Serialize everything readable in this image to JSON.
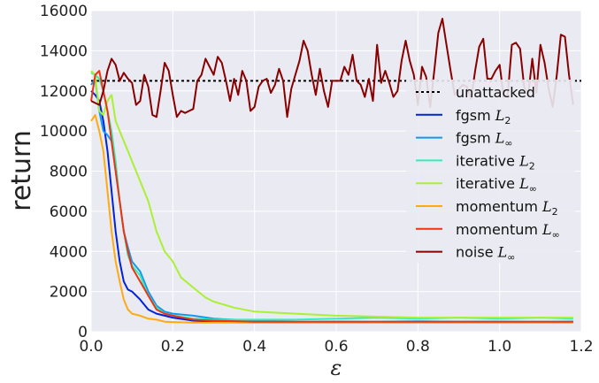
{
  "chart_data": {
    "type": "line",
    "xlabel": "ε",
    "ylabel": "return",
    "xlim": [
      0,
      1.2
    ],
    "ylim": [
      0,
      16000
    ],
    "x_ticks": [
      0.0,
      0.2,
      0.4,
      0.6,
      0.8,
      1.0,
      1.2
    ],
    "x_tick_labels": [
      "0.0",
      "0.2",
      "0.4",
      "0.6",
      "0.8",
      "1.0",
      "1.2"
    ],
    "y_ticks": [
      0,
      2000,
      4000,
      6000,
      8000,
      10000,
      12000,
      14000,
      16000
    ],
    "y_tick_labels": [
      "0",
      "2000",
      "4000",
      "6000",
      "8000",
      "10000",
      "12000",
      "14000",
      "16000"
    ],
    "grid": true,
    "legend_position": "right",
    "reference_line": {
      "name": "unattacked",
      "y": 12500,
      "color": "#000000"
    },
    "series": [
      {
        "name": "fgsm",
        "subscript": "2",
        "color": "#0022dd",
        "x": [
          0.0,
          0.01,
          0.02,
          0.03,
          0.04,
          0.05,
          0.06,
          0.07,
          0.08,
          0.09,
          0.1,
          0.12,
          0.14,
          0.16,
          0.18,
          0.2,
          0.25,
          0.3,
          0.4,
          0.5,
          0.6,
          0.7,
          0.8,
          0.9,
          1.0,
          1.1,
          1.18
        ],
        "y": [
          12000,
          11800,
          11500,
          10500,
          9000,
          7000,
          5000,
          3500,
          2500,
          2100,
          2000,
          1600,
          1100,
          900,
          800,
          700,
          550,
          500,
          500,
          480,
          500,
          480,
          500,
          490,
          500,
          480,
          500
        ]
      },
      {
        "name": "fgsm",
        "subscript": "∞",
        "color": "#1199ee",
        "x": [
          0.0,
          0.01,
          0.02,
          0.03,
          0.04,
          0.05,
          0.06,
          0.07,
          0.08,
          0.09,
          0.1,
          0.12,
          0.14,
          0.16,
          0.18,
          0.2,
          0.25,
          0.3,
          0.4,
          0.5,
          0.6,
          0.7,
          0.8,
          0.9,
          1.0,
          1.1,
          1.18
        ],
        "y": [
          12300,
          12600,
          11000,
          10000,
          9800,
          9500,
          8000,
          6500,
          5000,
          4200,
          3500,
          3000,
          2000,
          1300,
          1000,
          900,
          800,
          650,
          550,
          500,
          500,
          500,
          520,
          500,
          500,
          500,
          500
        ]
      },
      {
        "name": "iterative",
        "subscript": "2",
        "color": "#33eebb",
        "x": [
          0.0,
          0.01,
          0.02,
          0.03,
          0.04,
          0.05,
          0.06,
          0.07,
          0.08,
          0.09,
          0.1,
          0.12,
          0.14,
          0.16,
          0.18,
          0.2,
          0.25,
          0.3,
          0.4,
          0.5,
          0.6,
          0.7,
          0.8,
          0.9,
          1.0,
          1.1,
          1.18
        ],
        "y": [
          12900,
          12800,
          12600,
          12000,
          11000,
          10000,
          8500,
          6500,
          5000,
          3800,
          3300,
          2800,
          1800,
          1200,
          900,
          800,
          650,
          600,
          600,
          600,
          650,
          700,
          650,
          700,
          650,
          700,
          650
        ]
      },
      {
        "name": "iterative",
        "subscript": "∞",
        "color": "#aaf033",
        "x": [
          0.0,
          0.01,
          0.02,
          0.03,
          0.04,
          0.05,
          0.06,
          0.07,
          0.08,
          0.09,
          0.1,
          0.12,
          0.14,
          0.16,
          0.18,
          0.2,
          0.22,
          0.25,
          0.28,
          0.3,
          0.35,
          0.4,
          0.5,
          0.6,
          0.7,
          0.8,
          0.9,
          1.0,
          1.1,
          1.18
        ],
        "y": [
          13000,
          12800,
          11000,
          10800,
          11500,
          11800,
          10500,
          10000,
          9500,
          9000,
          8500,
          7500,
          6500,
          5000,
          4000,
          3500,
          2700,
          2200,
          1700,
          1500,
          1200,
          1000,
          900,
          800,
          750,
          700,
          700,
          700,
          700,
          700
        ]
      },
      {
        "name": "momentum",
        "subscript": "2",
        "color": "#ffaa11",
        "x": [
          0.0,
          0.01,
          0.02,
          0.03,
          0.04,
          0.05,
          0.06,
          0.07,
          0.08,
          0.09,
          0.1,
          0.12,
          0.14,
          0.16,
          0.18,
          0.2,
          0.25,
          0.3,
          0.4,
          0.5,
          0.6,
          0.7,
          0.8,
          0.9,
          1.0,
          1.1,
          1.18
        ],
        "y": [
          10500,
          10800,
          10000,
          9000,
          7000,
          5000,
          3500,
          2500,
          1600,
          1100,
          900,
          800,
          650,
          600,
          500,
          480,
          450,
          450,
          450,
          450,
          450,
          450,
          450,
          450,
          450,
          450,
          450
        ]
      },
      {
        "name": "momentum",
        "subscript": "∞",
        "color": "#ee3311",
        "x": [
          0.0,
          0.01,
          0.02,
          0.03,
          0.04,
          0.05,
          0.06,
          0.07,
          0.08,
          0.09,
          0.1,
          0.12,
          0.14,
          0.16,
          0.18,
          0.2,
          0.25,
          0.3,
          0.4,
          0.5,
          0.6,
          0.7,
          0.8,
          0.9,
          1.0,
          1.1,
          1.18
        ],
        "y": [
          11500,
          12800,
          13000,
          12000,
          11000,
          9500,
          8000,
          6500,
          5000,
          4000,
          3200,
          2500,
          1800,
          1100,
          900,
          800,
          600,
          550,
          500,
          500,
          500,
          500,
          500,
          500,
          500,
          500,
          500
        ]
      },
      {
        "name": "noise",
        "subscript": "∞",
        "color": "#880000",
        "x": [
          0.0,
          0.02,
          0.03,
          0.04,
          0.05,
          0.06,
          0.07,
          0.08,
          0.09,
          0.1,
          0.11,
          0.12,
          0.13,
          0.14,
          0.15,
          0.16,
          0.17,
          0.18,
          0.19,
          0.2,
          0.21,
          0.22,
          0.23,
          0.24,
          0.25,
          0.26,
          0.27,
          0.28,
          0.29,
          0.3,
          0.31,
          0.32,
          0.33,
          0.34,
          0.35,
          0.36,
          0.37,
          0.38,
          0.39,
          0.4,
          0.41,
          0.42,
          0.43,
          0.44,
          0.45,
          0.46,
          0.47,
          0.48,
          0.49,
          0.5,
          0.51,
          0.52,
          0.53,
          0.54,
          0.55,
          0.56,
          0.57,
          0.58,
          0.59,
          0.6,
          0.61,
          0.62,
          0.63,
          0.64,
          0.65,
          0.66,
          0.67,
          0.68,
          0.69,
          0.7,
          0.71,
          0.72,
          0.73,
          0.74,
          0.75,
          0.76,
          0.77,
          0.78,
          0.79,
          0.8,
          0.81,
          0.82,
          0.83,
          0.84,
          0.85,
          0.86,
          0.87,
          0.88,
          0.89,
          0.9,
          0.91,
          0.92,
          0.93,
          0.94,
          0.95,
          0.96,
          0.97,
          0.98,
          0.99,
          1.0,
          1.01,
          1.02,
          1.03,
          1.04,
          1.05,
          1.06,
          1.07,
          1.08,
          1.09,
          1.1,
          1.11,
          1.12,
          1.13,
          1.14,
          1.15,
          1.16,
          1.17,
          1.18
        ],
        "y": [
          11500,
          11300,
          12000,
          13000,
          13600,
          13300,
          12500,
          12900,
          12600,
          12400,
          11300,
          11500,
          12800,
          12200,
          10800,
          10700,
          12000,
          13400,
          13000,
          11800,
          10700,
          11000,
          10900,
          11000,
          11100,
          12500,
          12800,
          13600,
          13200,
          12800,
          13700,
          13400,
          12500,
          11500,
          12600,
          11800,
          13000,
          12500,
          11000,
          11200,
          12200,
          12500,
          12600,
          11900,
          12300,
          13100,
          12500,
          10700,
          12100,
          12800,
          13500,
          14500,
          14000,
          12800,
          11800,
          13100,
          12000,
          11200,
          12500,
          12500,
          12500,
          13200,
          12800,
          13800,
          12500,
          12300,
          11700,
          12600,
          11500,
          14300,
          12400,
          13000,
          12400,
          11700,
          12000,
          13500,
          14500,
          13500,
          12800,
          11300,
          13200,
          12700,
          11200,
          13000,
          14900,
          15600,
          14300,
          13000,
          11800,
          12100,
          12300,
          12200,
          11600,
          13000,
          14200,
          14600,
          12600,
          12600,
          13000,
          13300,
          11700,
          11800,
          14300,
          14400,
          14100,
          12200,
          11800,
          13600,
          11900,
          14300,
          13400,
          12100,
          11200,
          12800,
          14800,
          14700,
          12800,
          11300
        ]
      }
    ]
  }
}
